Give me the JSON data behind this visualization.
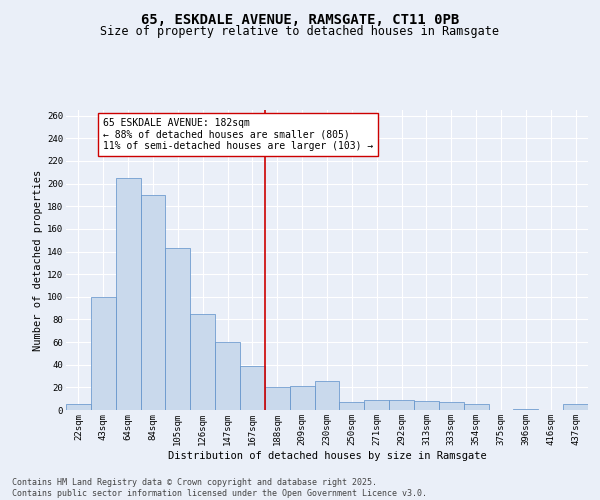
{
  "title": "65, ESKDALE AVENUE, RAMSGATE, CT11 0PB",
  "subtitle": "Size of property relative to detached houses in Ramsgate",
  "xlabel": "Distribution of detached houses by size in Ramsgate",
  "ylabel": "Number of detached properties",
  "categories": [
    "22sqm",
    "43sqm",
    "64sqm",
    "84sqm",
    "105sqm",
    "126sqm",
    "147sqm",
    "167sqm",
    "188sqm",
    "209sqm",
    "230sqm",
    "250sqm",
    "271sqm",
    "292sqm",
    "313sqm",
    "333sqm",
    "354sqm",
    "375sqm",
    "396sqm",
    "416sqm",
    "437sqm"
  ],
  "values": [
    5,
    100,
    205,
    190,
    143,
    85,
    60,
    39,
    20,
    21,
    26,
    7,
    9,
    9,
    8,
    7,
    5,
    0,
    1,
    0,
    5
  ],
  "bar_color": "#c9d9ec",
  "bar_edge_color": "#5b8fc9",
  "vline_index": 8,
  "annotation_text": "65 ESKDALE AVENUE: 182sqm\n← 88% of detached houses are smaller (805)\n11% of semi-detached houses are larger (103) →",
  "annotation_box_color": "#ffffff",
  "annotation_box_edge": "#cc0000",
  "ylim": [
    0,
    265
  ],
  "yticks": [
    0,
    20,
    40,
    60,
    80,
    100,
    120,
    140,
    160,
    180,
    200,
    220,
    240,
    260
  ],
  "background_color": "#eaeff8",
  "grid_color": "#ffffff",
  "footer_line1": "Contains HM Land Registry data © Crown copyright and database right 2025.",
  "footer_line2": "Contains public sector information licensed under the Open Government Licence v3.0.",
  "title_fontsize": 10,
  "subtitle_fontsize": 8.5,
  "axis_label_fontsize": 7.5,
  "tick_fontsize": 6.5,
  "annotation_fontsize": 7,
  "footer_fontsize": 6
}
